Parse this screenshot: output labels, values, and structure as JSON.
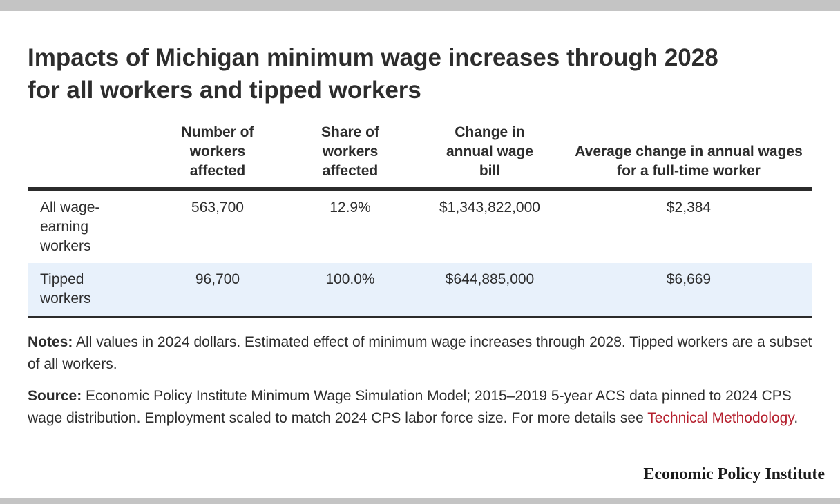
{
  "title_line1": "Impacts of Michigan minimum wage increases through 2028",
  "title_line2": "for all workers and tipped workers",
  "table": {
    "headers": [
      "",
      "Number of workers affected",
      "Share of workers affected",
      "Change in annual wage bill",
      "Average change in annual wages for a full-time worker"
    ],
    "rows": [
      {
        "label_line1": "All wage-",
        "label_line2": "earning",
        "label_line3": "workers",
        "workers": "563,700",
        "share": "12.9%",
        "wage_bill": "$1,343,822,000",
        "avg_change": "$2,384"
      },
      {
        "label_line1": "Tipped",
        "label_line2": "workers",
        "workers": "96,700",
        "share": "100.0%",
        "wage_bill": "$644,885,000",
        "avg_change": "$6,669"
      }
    ]
  },
  "notes": {
    "label": "Notes:",
    "text": "All values in 2024 dollars. Estimated effect of minimum wage increases through 2028. Tipped workers are a subset of all workers."
  },
  "source": {
    "label": "Source:",
    "text": "Economic Policy Institute Minimum Wage Simulation Model; 2015–2019 5-year ACS data pinned to 2024 CPS wage distribution. Employment scaled to match 2024 CPS labor force size. For more details see",
    "link_text": "Technical Methodology",
    "end": "."
  },
  "logo": "Economic Policy Institute",
  "colors": {
    "accent_link": "#b5202e",
    "row_shade": "#e8f1fb",
    "frame_bar": "#c4c4c4"
  }
}
